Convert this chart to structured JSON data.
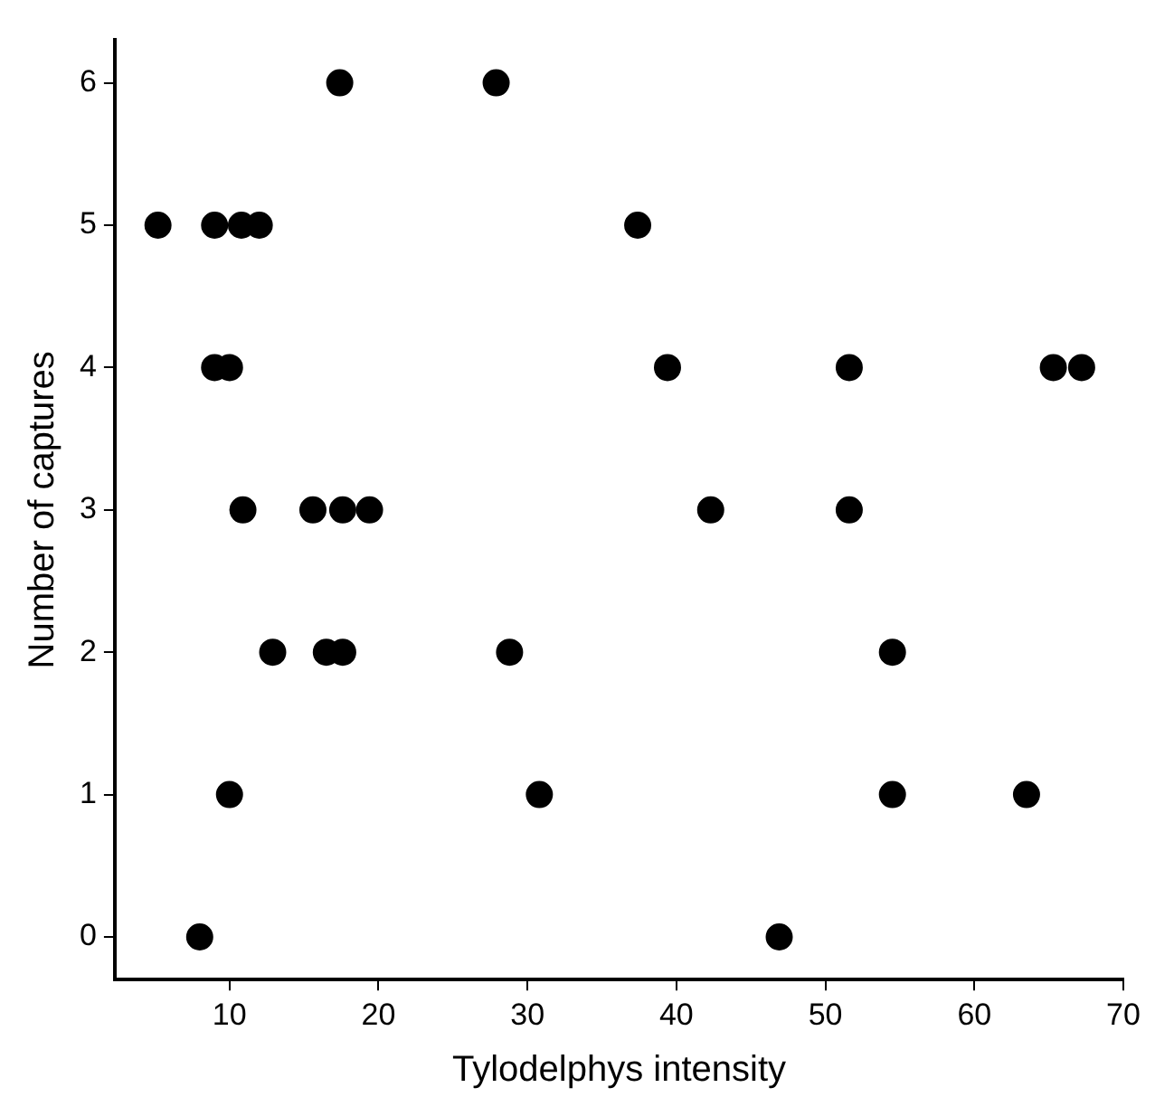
{
  "chart_data": {
    "type": "scatter",
    "xlabel": "Tylodelphys intensity",
    "ylabel": "Number of captures",
    "x": [
      17.4,
      27.9,
      5.2,
      9,
      10.8,
      12,
      37.4,
      9,
      10,
      39.4,
      51.6,
      65.3,
      67.2,
      10.9,
      15.6,
      17.6,
      19.4,
      42.3,
      51.6,
      12.9,
      16.5,
      17.6,
      28.8,
      54.5,
      10,
      30.8,
      54.5,
      63.5,
      8,
      46.9
    ],
    "values": [
      6,
      6,
      5,
      5,
      5,
      5,
      5,
      4,
      4,
      4,
      4,
      4,
      4,
      3,
      3,
      3,
      3,
      3,
      3,
      2,
      2,
      2,
      2,
      2,
      1,
      1,
      1,
      1,
      0,
      0
    ],
    "color": "#000000",
    "marker": "circle",
    "grid": false,
    "legend": false,
    "xlim": [
      2.3,
      70
    ],
    "xticks": [
      10,
      20,
      30,
      40,
      50,
      60,
      70
    ],
    "ylim": [
      -0.3,
      6.3
    ],
    "yticks": [
      0,
      1,
      2,
      3,
      4,
      5,
      6
    ]
  }
}
